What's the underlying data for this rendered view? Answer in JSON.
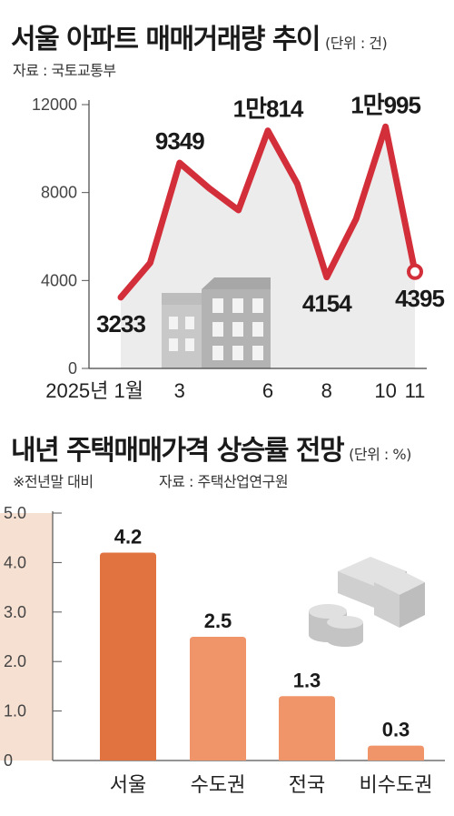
{
  "chart_data": [
    {
      "type": "line",
      "title": "서울 아파트 매매거래량 추이",
      "unit": "(단위 : 건)",
      "source": "자료 : 국토교통부",
      "ylim": [
        0,
        12000
      ],
      "yticks": [
        "0",
        "4000",
        "8000",
        "12000"
      ],
      "x_tick_labels": [
        {
          "i": 0,
          "label": "2025년 1월"
        },
        {
          "i": 2,
          "label": "3"
        },
        {
          "i": 5,
          "label": "6"
        },
        {
          "i": 7,
          "label": "8"
        },
        {
          "i": 9,
          "label": "10"
        },
        {
          "i": 10,
          "label": "11"
        }
      ],
      "series": [
        {
          "values": [
            3233,
            4800,
            9349,
            8200,
            7200,
            10814,
            8400,
            4154,
            6800,
            10995,
            4395
          ]
        }
      ],
      "data_labels": [
        {
          "i": 0,
          "text": "3233"
        },
        {
          "i": 2,
          "text": "9349"
        },
        {
          "i": 5,
          "text": "1만814"
        },
        {
          "i": 7,
          "text": "4154"
        },
        {
          "i": 9,
          "text": "1만995"
        },
        {
          "i": 10,
          "text": "4395"
        }
      ],
      "colors": {
        "line": "#d32f3a",
        "area": "#ececec"
      },
      "illustration_icon": "apartment-buildings-icon",
      "grid": false
    },
    {
      "type": "bar",
      "title": "내년 주택매매가격 상승률 전망",
      "unit": "(단위 : %)",
      "note": "※전년말 대비",
      "source": "자료 : 주택산업연구원",
      "categories": [
        "서울",
        "수도권",
        "전국",
        "비수도권"
      ],
      "values": [
        4.2,
        2.5,
        1.3,
        0.3
      ],
      "value_labels": [
        "4.2",
        "2.5",
        "1.3",
        "0.3"
      ],
      "ylim": [
        0,
        5.0
      ],
      "yticks": [
        "0",
        "1.0",
        "2.0",
        "3.0",
        "4.0",
        "5.0"
      ],
      "colors": {
        "highlight": "#e0733f",
        "bar": "#f0956a",
        "axis_band": "#f6e0d2"
      },
      "illustration_icon": "money-stack-icon",
      "grid": false
    }
  ]
}
